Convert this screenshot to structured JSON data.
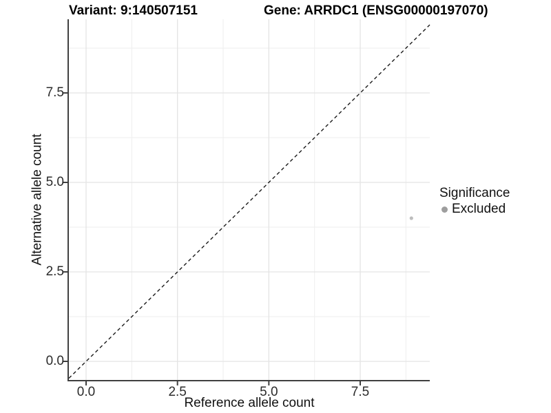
{
  "header": {
    "variant_title": "Variant: 9:140507151",
    "gene_title": "Gene: ARRDC1 (ENSG00000197070)"
  },
  "chart_data": {
    "type": "scatter",
    "xlabel": "Reference allele count",
    "ylabel": "Alternative allele count",
    "xlim": [
      -0.471,
      9.403
    ],
    "ylim": [
      -0.519,
      9.558
    ],
    "x_major_ticks": [
      0.0,
      2.5,
      5.0,
      7.5
    ],
    "y_major_ticks": [
      0.0,
      2.5,
      5.0,
      7.5
    ],
    "x_minor_gridlines": [
      1.25,
      3.75,
      6.25,
      8.75
    ],
    "y_minor_gridlines": [
      1.25,
      3.75,
      6.25,
      8.75
    ],
    "tick_label_decimals": 1,
    "grid": true,
    "series": [
      {
        "name": "Excluded",
        "points": [
          {
            "x": 8.9,
            "y": 4.0
          }
        ],
        "point_radius": 2.6,
        "color": "#bdbdbd"
      }
    ],
    "reference_line": {
      "kind": "abline",
      "slope": 1,
      "intercept": 0,
      "style": "dashed",
      "color": "#1a1a1a"
    },
    "legend": {
      "title": "Significance",
      "position": "right",
      "entries": [
        {
          "label": "Excluded",
          "color": "#9e9e9e"
        }
      ]
    },
    "colors": {
      "background": "#ffffff",
      "grid_major": "#e4e4e4",
      "grid_minor": "#eeeeee",
      "axis_line": "#3f3f3f",
      "tick_mark": "#3f3f3f",
      "tick_text": "#2b2b2b"
    }
  }
}
